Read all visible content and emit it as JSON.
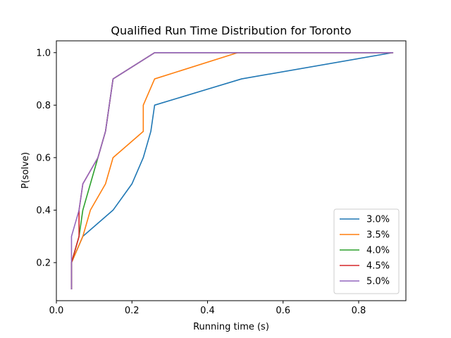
{
  "chart_data": {
    "type": "line",
    "title": "Qualified Run Time Distribution for Toronto",
    "xlabel": "Running time (s)",
    "ylabel": "P(solve)",
    "xlim": [
      0.0,
      0.925
    ],
    "ylim": [
      0.055,
      1.045
    ],
    "xticks": [
      0.0,
      0.2,
      0.4,
      0.6,
      0.8
    ],
    "xtick_labels": [
      "0.0",
      "0.2",
      "0.4",
      "0.6",
      "0.8"
    ],
    "yticks": [
      0.2,
      0.4,
      0.6,
      0.8,
      1.0
    ],
    "ytick_labels": [
      "0.2",
      "0.4",
      "0.6",
      "0.8",
      "1.0"
    ],
    "grid": false,
    "legend_position": "bottom-right",
    "series": [
      {
        "name": "3.0%",
        "color": "#1f77b4",
        "x": [
          0.04,
          0.04,
          0.04,
          0.07,
          0.15,
          0.2,
          0.23,
          0.25,
          0.26,
          0.49,
          0.89
        ],
        "y": [
          0.1,
          0.2,
          0.2,
          0.3,
          0.4,
          0.5,
          0.6,
          0.7,
          0.8,
          0.9,
          1.0
        ]
      },
      {
        "name": "3.5%",
        "color": "#ff7f0e",
        "x": [
          0.04,
          0.04,
          0.07,
          0.09,
          0.13,
          0.15,
          0.23,
          0.23,
          0.26,
          0.48,
          0.89
        ],
        "y": [
          0.1,
          0.2,
          0.3,
          0.4,
          0.5,
          0.6,
          0.7,
          0.8,
          0.9,
          1.0,
          1.0
        ]
      },
      {
        "name": "4.0%",
        "color": "#2ca02c",
        "x": [
          0.04,
          0.04,
          0.06,
          0.07,
          0.11,
          0.13,
          0.15,
          0.26,
          0.89
        ],
        "y": [
          0.1,
          0.2,
          0.3,
          0.4,
          0.6,
          0.7,
          0.9,
          1.0,
          1.0
        ]
      },
      {
        "name": "4.5%",
        "color": "#d62728",
        "x": [
          0.04,
          0.04,
          0.06,
          0.06,
          0.07,
          0.11,
          0.13,
          0.15,
          0.26,
          0.89
        ],
        "y": [
          0.1,
          0.2,
          0.3,
          0.4,
          0.5,
          0.6,
          0.7,
          0.9,
          1.0,
          1.0
        ]
      },
      {
        "name": "5.0%",
        "color": "#9467bd",
        "x": [
          0.04,
          0.04,
          0.06,
          0.07,
          0.11,
          0.13,
          0.15,
          0.26,
          0.89
        ],
        "y": [
          0.1,
          0.3,
          0.4,
          0.5,
          0.6,
          0.7,
          0.9,
          1.0,
          1.0
        ]
      }
    ]
  }
}
